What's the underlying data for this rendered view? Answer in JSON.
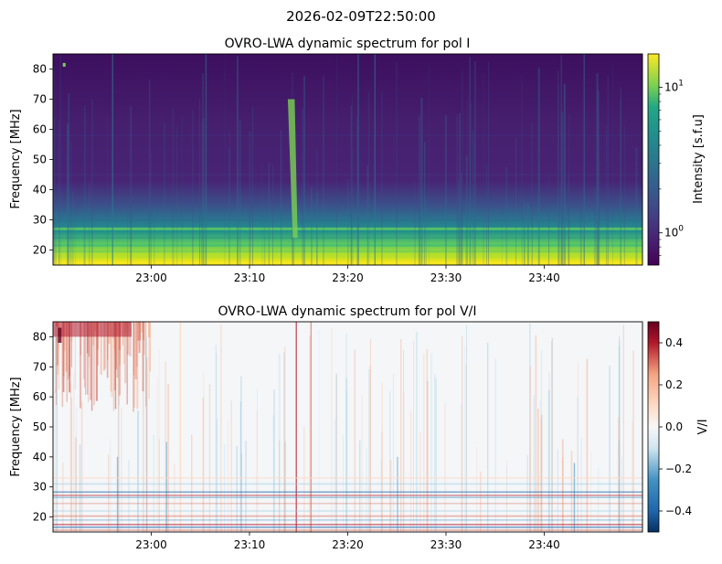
{
  "suptitle": "2026-02-09T22:50:00",
  "colors": {
    "viridis_low": "#440154",
    "viridis_high": "#fde725",
    "rdbu_low": "#053061",
    "rdbu_mid": "#f7f7f7",
    "rdbu_high": "#67001f"
  },
  "chart_data": [
    {
      "type": "heatmap",
      "title": "OVRO-LWA dynamic spectrum for pol I",
      "xlabel": "",
      "ylabel": "Frequency [MHz]",
      "x_tick_labels": [
        "23:00",
        "23:10",
        "23:20",
        "23:30",
        "23:40"
      ],
      "x_tick_minutes": [
        60,
        70,
        80,
        90,
        100
      ],
      "x_range_minutes": [
        50,
        110
      ],
      "y_ticks": [
        20,
        30,
        40,
        50,
        60,
        70,
        80
      ],
      "ylim": [
        15,
        85
      ],
      "colorscale": "viridis",
      "color_scale_type": "log",
      "colorbar_label": "Intensity [s.f.u]",
      "colorbar_tick_labels": [
        "10^1",
        "10^0"
      ],
      "colorbar_tick_values": [
        10,
        1
      ],
      "colorbar_range": [
        0.6,
        17
      ],
      "features": {
        "bright_low_frequency_band_mhz": [
          15,
          20
        ],
        "band_edges_mhz": [
          27,
          32
        ],
        "burst_time_minutes": 74.3
      }
    },
    {
      "type": "heatmap",
      "title": "OVRO-LWA dynamic spectrum for pol V/I",
      "xlabel": "",
      "ylabel": "Frequency [MHz]",
      "x_tick_labels": [
        "23:00",
        "23:10",
        "23:20",
        "23:30",
        "23:40"
      ],
      "x_tick_minutes": [
        60,
        70,
        80,
        90,
        100
      ],
      "x_range_minutes": [
        50,
        110
      ],
      "y_ticks": [
        20,
        30,
        40,
        50,
        60,
        70,
        80
      ],
      "ylim": [
        15,
        85
      ],
      "colorscale": "RdBu_r",
      "color_scale_type": "linear",
      "colorbar_label": "V/I",
      "colorbar_ticks": [
        0.4,
        0.2,
        0.0,
        -0.2,
        -0.4
      ],
      "colorbar_tick_labels": [
        "0.4",
        "0.2",
        "0.0",
        "−0.2",
        "−0.4"
      ],
      "colorbar_range": [
        -0.5,
        0.5
      ]
    }
  ]
}
